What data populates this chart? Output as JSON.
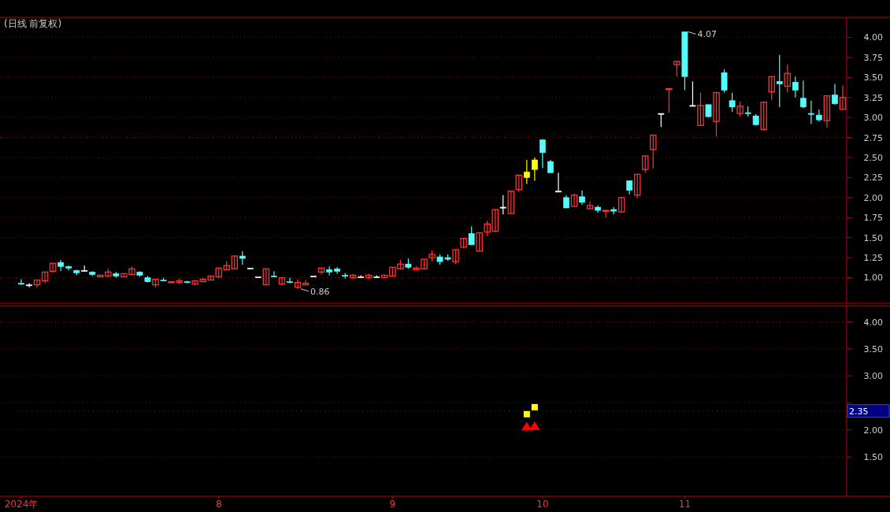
{
  "chart_data": [
    {
      "type": "candlestick",
      "title": "(日线 前复权)",
      "categories": [
        null,
        null,
        null,
        null,
        null,
        null,
        null,
        null,
        null,
        null,
        null,
        null,
        null,
        null,
        null,
        null,
        null,
        null,
        null,
        null,
        null,
        null,
        null,
        null,
        null,
        null,
        null,
        null,
        null,
        null,
        null,
        null,
        null,
        null,
        null,
        null,
        null,
        null,
        null,
        null,
        null,
        null,
        null,
        null,
        null,
        null,
        null,
        null,
        null,
        null,
        null,
        null,
        null,
        null,
        null,
        null,
        null,
        null,
        null,
        null,
        null,
        null,
        null,
        null,
        null,
        null,
        null,
        null,
        null,
        null,
        null,
        null,
        null,
        null,
        null,
        null,
        null,
        null,
        null,
        null,
        null,
        null,
        null,
        null,
        null,
        null,
        null,
        null,
        null,
        null,
        null,
        null,
        null,
        null,
        null,
        null,
        null,
        null,
        null,
        null,
        null,
        null,
        null,
        null,
        null
      ],
      "ohlc": [
        [
          0.93,
          0.98,
          0.91,
          0.92
        ],
        [
          0.91,
          0.93,
          0.88,
          0.91
        ],
        [
          0.91,
          0.97,
          0.88,
          0.97
        ],
        [
          0.96,
          1.07,
          0.93,
          1.07
        ],
        [
          1.08,
          1.18,
          1.06,
          1.18
        ],
        [
          1.19,
          1.22,
          1.08,
          1.14
        ],
        [
          1.14,
          1.15,
          1.09,
          1.12
        ],
        [
          1.09,
          1.1,
          1.03,
          1.06
        ],
        [
          1.09,
          1.15,
          1.08,
          1.09
        ],
        [
          1.07,
          1.08,
          1.02,
          1.04
        ],
        [
          1.01,
          1.03,
          1.01,
          1.03
        ],
        [
          1.02,
          1.11,
          1.02,
          1.07
        ],
        [
          1.05,
          1.07,
          1.0,
          1.02
        ],
        [
          1.01,
          1.05,
          1.01,
          1.05
        ],
        [
          1.04,
          1.14,
          1.04,
          1.11
        ],
        [
          1.07,
          1.08,
          1.01,
          1.03
        ],
        [
          1.0,
          1.02,
          0.94,
          0.95
        ],
        [
          0.91,
          0.98,
          0.88,
          0.98
        ],
        [
          0.97,
          1.0,
          0.96,
          0.96
        ],
        [
          0.94,
          0.95,
          0.93,
          0.95
        ],
        [
          0.94,
          0.99,
          0.92,
          0.96
        ],
        [
          0.95,
          0.96,
          0.93,
          0.94
        ],
        [
          0.92,
          0.97,
          0.91,
          0.96
        ],
        [
          0.95,
          1.0,
          0.95,
          0.98
        ],
        [
          0.97,
          1.02,
          0.97,
          1.02
        ],
        [
          1.01,
          1.12,
          0.99,
          1.12
        ],
        [
          1.1,
          1.21,
          1.1,
          1.15
        ],
        [
          1.11,
          1.27,
          1.11,
          1.27
        ],
        [
          1.27,
          1.33,
          1.16,
          1.24
        ],
        [
          1.12,
          1.12,
          1.12,
          1.12
        ],
        [
          1.01,
          1.01,
          1.01,
          1.01
        ],
        [
          0.91,
          1.11,
          0.91,
          1.11
        ],
        [
          1.02,
          1.08,
          1.01,
          1.01
        ],
        [
          0.92,
          1.0,
          0.91,
          1.0
        ],
        [
          0.95,
          1.0,
          0.93,
          0.94
        ],
        [
          0.88,
          0.98,
          0.86,
          0.94
        ],
        [
          0.91,
          0.97,
          0.91,
          0.93
        ],
        [
          1.02,
          1.02,
          1.02,
          1.02
        ],
        [
          1.07,
          1.12,
          1.04,
          1.12
        ],
        [
          1.1,
          1.14,
          1.03,
          1.07
        ],
        [
          1.11,
          1.13,
          1.05,
          1.08
        ],
        [
          1.03,
          1.06,
          0.99,
          1.02
        ],
        [
          1.0,
          1.05,
          0.98,
          1.03
        ],
        [
          1.01,
          1.03,
          1.0,
          1.01
        ],
        [
          1.0,
          1.05,
          0.98,
          1.03
        ],
        [
          1.01,
          1.03,
          1.0,
          1.01
        ],
        [
          1.0,
          1.04,
          1.0,
          1.03
        ],
        [
          1.02,
          1.13,
          1.02,
          1.13
        ],
        [
          1.11,
          1.22,
          1.1,
          1.17
        ],
        [
          1.17,
          1.24,
          1.11,
          1.13
        ],
        [
          1.1,
          1.14,
          1.1,
          1.12
        ],
        [
          1.11,
          1.23,
          1.11,
          1.23
        ],
        [
          1.25,
          1.34,
          1.2,
          1.29
        ],
        [
          1.26,
          1.29,
          1.16,
          1.2
        ],
        [
          1.25,
          1.29,
          1.21,
          1.23
        ],
        [
          1.2,
          1.35,
          1.17,
          1.35
        ],
        [
          1.38,
          1.49,
          1.37,
          1.49
        ],
        [
          1.55,
          1.64,
          1.41,
          1.41
        ],
        [
          1.33,
          1.56,
          1.33,
          1.56
        ],
        [
          1.57,
          1.71,
          1.52,
          1.67
        ],
        [
          1.58,
          1.85,
          1.57,
          1.85
        ],
        [
          1.88,
          2.03,
          1.79,
          1.88
        ],
        [
          1.8,
          2.08,
          1.8,
          2.08
        ],
        [
          2.1,
          2.28,
          2.07,
          2.28
        ],
        [
          2.25,
          2.47,
          2.17,
          2.32
        ],
        [
          2.35,
          2.5,
          2.21,
          2.47
        ],
        [
          2.72,
          2.73,
          2.37,
          2.56
        ],
        [
          2.45,
          2.47,
          2.31,
          2.31
        ],
        [
          2.08,
          2.31,
          2.08,
          2.08
        ],
        [
          2.0,
          2.03,
          1.87,
          1.87
        ],
        [
          1.89,
          2.05,
          1.89,
          2.03
        ],
        [
          2.01,
          2.09,
          1.91,
          1.94
        ],
        [
          1.86,
          1.95,
          1.86,
          1.9
        ],
        [
          1.88,
          1.9,
          1.81,
          1.84
        ],
        [
          1.83,
          1.85,
          1.75,
          1.84
        ],
        [
          1.85,
          1.88,
          1.79,
          1.83
        ],
        [
          1.82,
          2.0,
          1.81,
          2.0
        ],
        [
          2.21,
          2.21,
          2.04,
          2.09
        ],
        [
          2.03,
          2.29,
          1.99,
          2.29
        ],
        [
          2.35,
          2.52,
          2.31,
          2.52
        ],
        [
          2.6,
          2.78,
          2.36,
          2.78
        ],
        [
          3.05,
          3.05,
          2.88,
          3.05
        ],
        [
          3.35,
          3.36,
          3.06,
          3.36
        ],
        [
          3.66,
          3.7,
          3.51,
          3.7
        ],
        [
          4.07,
          4.07,
          3.34,
          3.51
        ],
        [
          3.15,
          3.45,
          3.15,
          3.15
        ],
        [
          2.9,
          3.31,
          2.9,
          3.15
        ],
        [
          3.16,
          3.16,
          3.0,
          3.01
        ],
        [
          2.95,
          3.31,
          2.76,
          3.31
        ],
        [
          3.56,
          3.6,
          3.31,
          3.34
        ],
        [
          3.21,
          3.31,
          3.07,
          3.13
        ],
        [
          3.05,
          3.2,
          3.01,
          3.14
        ],
        [
          3.06,
          3.14,
          3.01,
          3.05
        ],
        [
          3.02,
          3.04,
          2.9,
          2.91
        ],
        [
          2.85,
          3.19,
          2.85,
          3.19
        ],
        [
          3.32,
          3.51,
          3.22,
          3.51
        ],
        [
          3.45,
          3.78,
          3.13,
          3.42
        ],
        [
          3.39,
          3.66,
          3.31,
          3.55
        ],
        [
          3.44,
          3.51,
          3.25,
          3.34
        ],
        [
          3.24,
          3.46,
          3.12,
          3.13
        ],
        [
          3.05,
          3.21,
          2.92,
          3.04
        ],
        [
          3.03,
          3.1,
          2.95,
          2.97
        ],
        [
          2.96,
          3.27,
          2.87,
          3.27
        ],
        [
          3.28,
          3.42,
          3.16,
          3.17
        ],
        [
          3.1,
          3.4,
          3.1,
          3.25
        ]
      ],
      "colors": [
        "#54fcfc",
        "#ffffff",
        "#ff3232",
        "#ff3232",
        "#ff3232",
        "#54fcfc",
        "#54fcfc",
        "#54fcfc",
        "#ffffff",
        "#54fcfc",
        "#ff3232",
        "#ff3232",
        "#54fcfc",
        "#ff3232",
        "#ff3232",
        "#54fcfc",
        "#54fcfc",
        "#ff3232",
        "#54fcfc",
        "#ff3232",
        "#ff3232",
        "#54fcfc",
        "#ff3232",
        "#ff3232",
        "#ff3232",
        "#ff3232",
        "#ff3232",
        "#ff3232",
        "#54fcfc",
        "#ffffff",
        "#ffffff",
        "#ff3232",
        "#54fcfc",
        "#ff3232",
        "#54fcfc",
        "#ff3232",
        "#ff3232",
        "#ffffff",
        "#ff3232",
        "#54fcfc",
        "#54fcfc",
        "#54fcfc",
        "#ff3232",
        "#ffffff",
        "#ff3232",
        "#ffffff",
        "#ff3232",
        "#ff3232",
        "#ff3232",
        "#54fcfc",
        "#ff3232",
        "#ff3232",
        "#ff3232",
        "#54fcfc",
        "#54fcfc",
        "#ff3232",
        "#ff3232",
        "#54fcfc",
        "#ff3232",
        "#ff3232",
        "#ff3232",
        "#ffffff",
        "#ff3232",
        "#ff3232",
        "#ffff00",
        "#ffff00",
        "#54fcfc",
        "#54fcfc",
        "#ffffff",
        "#54fcfc",
        "#ff3232",
        "#54fcfc",
        "#ff3232",
        "#54fcfc",
        "#ff3232",
        "#54fcfc",
        "#ff3232",
        "#54fcfc",
        "#ff3232",
        "#ff3232",
        "#ff3232",
        "#ffffff",
        "#ff3232",
        "#ff3232",
        "#54fcfc",
        "#ffffff",
        "#ff3232",
        "#54fcfc",
        "#ff3232",
        "#54fcfc",
        "#54fcfc",
        "#ff3232",
        "#54fcfc",
        "#54fcfc",
        "#ff3232",
        "#ff3232",
        "#54fcfc",
        "#ff3232",
        "#54fcfc",
        "#54fcfc",
        "#54fcfc",
        "#54fcfc",
        "#ff3232",
        "#54fcfc",
        "#ff3232"
      ],
      "ylim": [
        0.7,
        4.25
      ],
      "yticks": [
        {
          "value": 1,
          "label": "1.00"
        },
        {
          "value": 1.25,
          "label": "1.25"
        },
        {
          "value": 1.5,
          "label": "1.50"
        },
        {
          "value": 1.75,
          "label": "1.75"
        },
        {
          "value": 2,
          "label": "2.00"
        },
        {
          "value": 2.25,
          "label": "2.25"
        },
        {
          "value": 2.5,
          "label": "2.50"
        },
        {
          "value": 2.75,
          "label": "2.75"
        },
        {
          "value": 3,
          "label": "3.00"
        },
        {
          "value": 3.25,
          "label": "3.25"
        },
        {
          "value": 3.5,
          "label": "3.50"
        },
        {
          "value": 3.75,
          "label": "3.75"
        },
        {
          "value": 4,
          "label": "4.00"
        }
      ],
      "grid": "y",
      "tick_labels": "y",
      "annotations": [
        "4.07",
        "0.86"
      ]
    },
    {
      "type": "scatter",
      "categories": [
        "2024年",
        null,
        null,
        null,
        null,
        null,
        null,
        null,
        null,
        null,
        null,
        null,
        null,
        null,
        null,
        null,
        null,
        null,
        null,
        null,
        null,
        null,
        null,
        null,
        null,
        "8",
        null,
        null,
        null,
        null,
        null,
        null,
        null,
        null,
        null,
        null,
        null,
        null,
        null,
        null,
        null,
        null,
        null,
        null,
        null,
        null,
        null,
        "9",
        null,
        null,
        null,
        null,
        null,
        null,
        null,
        null,
        null,
        null,
        null,
        null,
        null,
        null,
        null,
        null,
        null,
        null,
        "10",
        null,
        null,
        null,
        null,
        null,
        null,
        null,
        null,
        null,
        null,
        null,
        null,
        null,
        null,
        null,
        null,
        null,
        "11",
        null,
        null,
        null,
        null,
        null,
        null,
        null,
        null,
        null,
        null,
        null,
        null,
        null,
        null,
        null,
        null,
        null,
        null,
        null,
        null
      ],
      "series": [
        {
          "color": "#ffff00",
          "marker": "square",
          "values": [
            null,
            null,
            null,
            null,
            null,
            null,
            null,
            null,
            null,
            null,
            null,
            null,
            null,
            null,
            null,
            null,
            null,
            null,
            null,
            null,
            null,
            null,
            null,
            null,
            null,
            null,
            null,
            null,
            null,
            null,
            null,
            null,
            null,
            null,
            null,
            null,
            null,
            null,
            null,
            null,
            null,
            null,
            null,
            null,
            null,
            null,
            null,
            null,
            null,
            null,
            null,
            null,
            null,
            null,
            null,
            null,
            null,
            null,
            null,
            null,
            null,
            null,
            null,
            null,
            2.29,
            2.42,
            null,
            null,
            null,
            null,
            null,
            null,
            null,
            null,
            null,
            null,
            null,
            null,
            null,
            null,
            null,
            null,
            null,
            null,
            null,
            null,
            null,
            null,
            null,
            null,
            null,
            null,
            null,
            null,
            null,
            null,
            null,
            null,
            null,
            null,
            null,
            null,
            null,
            null,
            null
          ]
        },
        {
          "color": "#ff0000",
          "marker": "triangle",
          "values": [
            null,
            null,
            null,
            null,
            null,
            null,
            null,
            null,
            null,
            null,
            null,
            null,
            null,
            null,
            null,
            null,
            null,
            null,
            null,
            null,
            null,
            null,
            null,
            null,
            null,
            null,
            null,
            null,
            null,
            null,
            null,
            null,
            null,
            null,
            null,
            null,
            null,
            null,
            null,
            null,
            null,
            null,
            null,
            null,
            null,
            null,
            null,
            null,
            null,
            null,
            null,
            null,
            null,
            null,
            null,
            null,
            null,
            null,
            null,
            null,
            null,
            null,
            null,
            null,
            2.06,
            2.07,
            null,
            null,
            null,
            null,
            null,
            null,
            null,
            null,
            null,
            null,
            null,
            null,
            null,
            null,
            null,
            null,
            null,
            null,
            null,
            null,
            null,
            null,
            null,
            null,
            null,
            null,
            null,
            null,
            null,
            null,
            null,
            null,
            null,
            null,
            null,
            null,
            null,
            null,
            null
          ]
        }
      ],
      "ylim": [
        0.8,
        4.3
      ],
      "yticks": [
        {
          "value": 1.5,
          "label": "1.50"
        },
        {
          "value": 2,
          "label": "2.00"
        },
        {
          "value": 2.5,
          "label": null
        },
        {
          "value": 3,
          "label": "3.00"
        },
        {
          "value": 3.5,
          "label": "3.50"
        },
        {
          "value": 4,
          "label": "4.00"
        }
      ],
      "grid": "y",
      "ref_lines": [
        {
          "axis": "y",
          "value": 2.35,
          "label": "2.35"
        }
      ]
    }
  ]
}
